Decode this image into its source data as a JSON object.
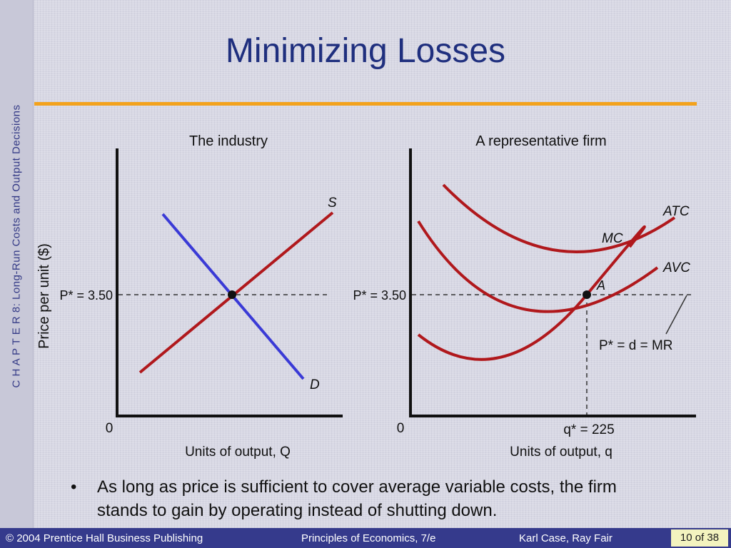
{
  "slide": {
    "title": "Minimizing Losses",
    "side_label": "C H A P T E R  8:  Long-Run Costs and Output Decisions",
    "bullet": "As long as price is sufficient to cover average variable costs, the firm stands to gain by operating instead of shutting down.",
    "bullet_symbol": "•"
  },
  "footer": {
    "copyright": "© 2004 Prentice Hall Business Publishing",
    "book": "Principles of Economics, 7/e",
    "authors": "Karl Case, Ray Fair",
    "page": "10 of 38"
  },
  "colors": {
    "title": "#1f2f7e",
    "accent_rule": "#f3a21c",
    "curve": "#b0181c",
    "demand": "#3a3ad6",
    "footer_bg": "#353a8c"
  },
  "chart_data": [
    {
      "type": "line",
      "title": "The industry",
      "ylabel": "Price per unit ($)",
      "xlabel": "Units of output, Q",
      "origin_label": "0",
      "price_label": "P* = 3.50",
      "price": 3.5,
      "series": [
        {
          "name": "S"
        },
        {
          "name": "D"
        }
      ],
      "equilibrium": {
        "price": 3.5
      }
    },
    {
      "type": "line",
      "title": "A representative firm",
      "xlabel": "Units of output, q",
      "origin_label": "0",
      "price_label": "P* = 3.50",
      "quantity_label": "q* = 225",
      "point_label": "A",
      "demand_label": "P* = d = MR",
      "price": 3.5,
      "quantity": 225,
      "series": [
        {
          "name": "ATC"
        },
        {
          "name": "MC"
        },
        {
          "name": "AVC"
        }
      ]
    }
  ]
}
